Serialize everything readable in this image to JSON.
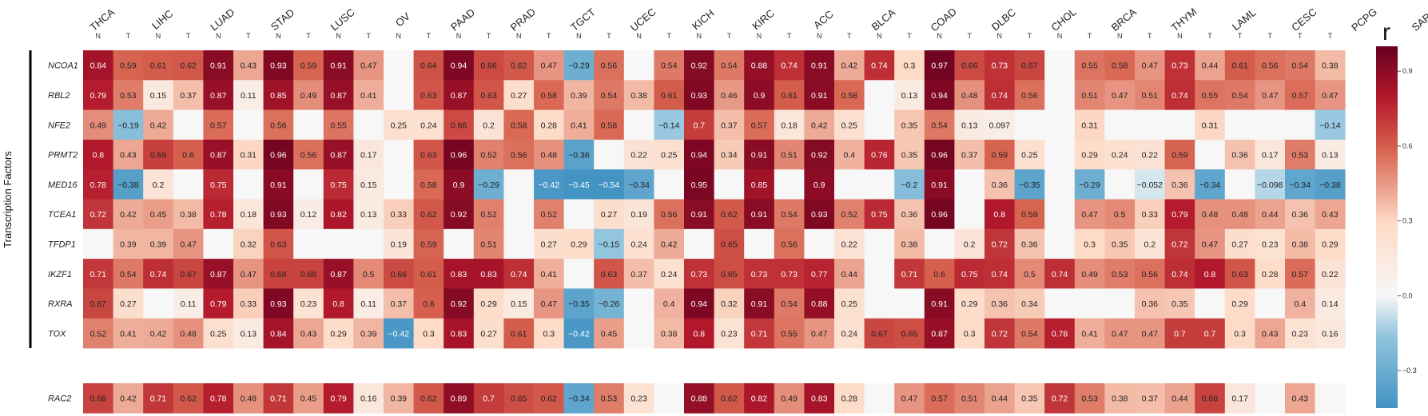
{
  "chart_data": {
    "type": "heatmap",
    "ylabel": "Transcription Factors",
    "colorbar": {
      "title": "r",
      "min": -0.45,
      "max": 1.0,
      "ticks": [
        "0.9",
        "0.6",
        "0.3",
        "0.0",
        "−0.3"
      ],
      "tick_values": [
        0.9,
        0.6,
        0.3,
        0.0,
        -0.3
      ]
    },
    "colors": {
      "high": "#67001f",
      "mid": "#f7f7f7",
      "low": "#4393c3",
      "empty": "#f7f7f7"
    },
    "cancer_types": [
      "THCA",
      "LIHC",
      "LUAD",
      "STAD",
      "LUSC",
      "OV",
      "PAAD",
      "PRAD",
      "TGCT",
      "UCEC",
      "KICH",
      "KIRC",
      "ACC",
      "BLCA",
      "COAD",
      "DLBC",
      "CHOL",
      "BRCA",
      "THYM",
      "LAML",
      "CESC",
      "PCPG",
      "SARC"
    ],
    "columns": [
      "N",
      "T",
      "N",
      "T",
      "N",
      "T",
      "N",
      "T",
      "N",
      "T",
      "N",
      "T",
      "N",
      "T",
      "N",
      "T",
      "N",
      "T",
      "N",
      "T",
      "N",
      "T",
      "N",
      "T",
      "N",
      "T",
      "N",
      "T",
      "N",
      "T",
      "N",
      "T",
      "N",
      "T",
      "N",
      "T",
      "N",
      "T",
      "T",
      "T",
      "T",
      "T"
    ],
    "rows": [
      "NCOA1",
      "RBL2",
      "NFE2",
      "PRMT2",
      "MED16",
      "TCEA1",
      "TFDP1",
      "IKZF1",
      "RXRA",
      "TOX"
    ],
    "values": [
      [
        0.84,
        0.59,
        0.61,
        0.62,
        0.91,
        0.43,
        0.93,
        0.59,
        0.91,
        0.47,
        null,
        0.64,
        0.94,
        0.66,
        0.62,
        0.47,
        -0.29,
        0.56,
        null,
        0.54,
        0.92,
        0.54,
        0.88,
        0.74,
        0.91,
        0.42,
        0.74,
        0.3,
        0.97,
        0.66,
        0.73,
        0.67,
        null,
        0.55,
        0.58,
        0.47,
        0.73,
        0.44,
        0.61,
        0.56,
        0.54,
        0.38
      ],
      [
        0.79,
        0.53,
        0.15,
        0.37,
        0.87,
        0.11,
        0.85,
        0.49,
        0.87,
        0.41,
        null,
        0.63,
        0.87,
        0.63,
        0.27,
        0.58,
        0.39,
        0.54,
        0.38,
        0.61,
        0.93,
        0.46,
        0.9,
        0.61,
        0.91,
        0.58,
        null,
        0.13,
        0.94,
        0.48,
        0.74,
        0.56,
        null,
        0.51,
        0.47,
        0.51,
        0.74,
        0.55,
        0.54,
        0.47,
        0.57,
        0.47
      ],
      [
        0.49,
        -0.19,
        0.42,
        null,
        0.57,
        null,
        0.56,
        null,
        0.55,
        null,
        0.25,
        0.24,
        0.66,
        0.2,
        0.58,
        0.28,
        0.41,
        0.58,
        null,
        -0.14,
        0.7,
        0.37,
        0.57,
        0.18,
        0.42,
        0.25,
        null,
        0.35,
        0.54,
        0.13,
        0.097,
        null,
        null,
        0.31,
        null,
        null,
        null,
        0.31,
        null,
        null,
        null,
        -0.14
      ],
      [
        0.8,
        0.43,
        0.69,
        0.6,
        0.87,
        0.31,
        0.96,
        0.56,
        0.87,
        0.17,
        null,
        0.63,
        0.96,
        0.52,
        0.56,
        0.48,
        -0.36,
        null,
        0.22,
        0.25,
        0.94,
        0.34,
        0.91,
        0.51,
        0.92,
        0.4,
        0.76,
        0.35,
        0.96,
        0.37,
        0.59,
        0.25,
        null,
        0.29,
        0.24,
        0.22,
        0.59,
        null,
        0.36,
        0.17,
        0.53,
        0.13
      ],
      [
        0.78,
        -0.38,
        0.2,
        null,
        0.75,
        null,
        0.91,
        null,
        0.75,
        0.15,
        null,
        0.58,
        0.9,
        -0.29,
        null,
        -0.42,
        -0.45,
        -0.54,
        -0.34,
        null,
        0.95,
        null,
        0.85,
        null,
        0.9,
        null,
        null,
        -0.2,
        0.91,
        null,
        0.36,
        -0.35,
        null,
        -0.29,
        null,
        -0.052,
        0.36,
        -0.34,
        null,
        -0.098,
        -0.34,
        -0.38
      ],
      [
        0.72,
        0.42,
        0.45,
        0.38,
        0.78,
        0.18,
        0.93,
        0.12,
        0.82,
        0.13,
        0.33,
        0.62,
        0.92,
        0.52,
        null,
        0.52,
        null,
        0.27,
        0.19,
        0.56,
        0.91,
        0.62,
        0.91,
        0.54,
        0.93,
        0.52,
        0.75,
        0.36,
        0.96,
        null,
        0.8,
        0.59,
        null,
        0.47,
        0.5,
        0.33,
        0.79,
        0.48,
        0.48,
        0.44,
        0.36,
        0.43
      ],
      [
        null,
        0.39,
        0.39,
        0.47,
        null,
        0.32,
        0.63,
        null,
        null,
        null,
        0.19,
        0.59,
        null,
        0.51,
        null,
        0.27,
        0.29,
        -0.15,
        0.24,
        0.42,
        null,
        0.65,
        null,
        0.56,
        null,
        0.22,
        null,
        0.38,
        null,
        0.2,
        0.72,
        0.36,
        null,
        0.3,
        0.35,
        0.2,
        0.72,
        0.47,
        0.27,
        0.23,
        0.38,
        0.29
      ],
      [
        0.71,
        0.54,
        0.74,
        0.67,
        0.87,
        0.47,
        0.68,
        0.68,
        0.87,
        0.5,
        0.66,
        0.61,
        0.83,
        0.83,
        0.74,
        0.41,
        null,
        0.63,
        0.37,
        0.24,
        0.73,
        0.65,
        0.73,
        0.73,
        0.77,
        0.44,
        null,
        0.71,
        0.6,
        0.75,
        0.74,
        0.5,
        0.74,
        0.49,
        0.53,
        0.56,
        0.74,
        0.8,
        0.63,
        0.28,
        0.57,
        0.22
      ],
      [
        0.67,
        0.27,
        null,
        0.11,
        0.79,
        0.33,
        0.93,
        0.23,
        0.8,
        0.11,
        0.37,
        0.6,
        0.92,
        0.29,
        0.15,
        0.47,
        -0.35,
        -0.26,
        null,
        0.4,
        0.94,
        0.32,
        0.91,
        0.54,
        0.88,
        0.25,
        null,
        null,
        0.91,
        0.29,
        0.36,
        0.34,
        null,
        null,
        null,
        0.36,
        0.35,
        null,
        0.29,
        null,
        0.4,
        0.14
      ],
      [
        0.52,
        0.41,
        0.42,
        0.48,
        0.25,
        0.13,
        0.84,
        0.43,
        0.29,
        0.39,
        -0.42,
        0.3,
        0.83,
        0.27,
        0.61,
        0.3,
        -0.42,
        0.45,
        null,
        0.38,
        0.8,
        0.23,
        0.71,
        0.55,
        0.47,
        0.24,
        0.67,
        0.65,
        0.87,
        0.3,
        0.72,
        0.54,
        0.78,
        0.41,
        0.47,
        0.47,
        0.7,
        0.7,
        0.3,
        0.43,
        0.23,
        0.16
      ]
    ],
    "bottom_row": {
      "label": "RAC2",
      "values": [
        0.68,
        0.42,
        0.71,
        0.62,
        0.78,
        0.48,
        0.71,
        0.45,
        0.79,
        0.16,
        0.39,
        0.62,
        0.89,
        0.7,
        0.65,
        0.62,
        -0.34,
        0.53,
        0.23,
        null,
        0.88,
        0.62,
        0.82,
        0.49,
        0.83,
        0.28,
        null,
        0.47,
        0.57,
        0.51,
        0.44,
        0.35,
        0.72,
        0.53,
        0.38,
        0.37,
        0.44,
        0.68,
        0.17,
        null,
        0.43,
        null
      ]
    }
  }
}
